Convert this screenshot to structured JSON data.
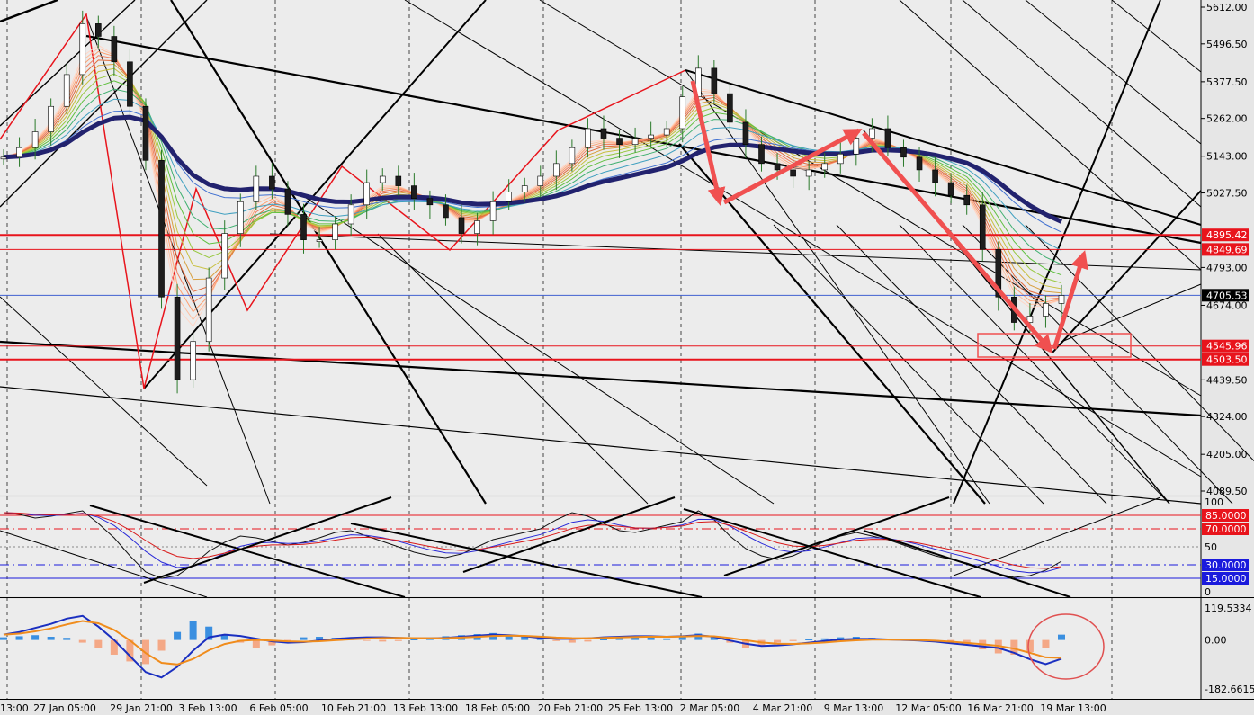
{
  "chart_data": {
    "type": "line",
    "instrument_panel": {
      "y_ticks": [
        "5612.00",
        "5496.50",
        "5377.50",
        "5262.00",
        "5143.00",
        "5027.50",
        "4793.00",
        "4674.00",
        "4439.50",
        "4324.00",
        "4205.00",
        "4089.50"
      ],
      "ylim": [
        4089.5,
        5612.0
      ],
      "price_labels": [
        {
          "value": 4895.42,
          "text": "4895.42",
          "color": "#e8141c"
        },
        {
          "value": 4849.69,
          "text": "4849.69",
          "color": "#e8141c"
        },
        {
          "value": 4705.53,
          "text": "4705.53",
          "color": "#000000"
        },
        {
          "value": 4545.96,
          "text": "4545.96",
          "color": "#e8141c"
        },
        {
          "value": 4503.5,
          "text": "4503.50",
          "color": "#e8141c"
        }
      ],
      "close_series": [
        5140,
        5170,
        5220,
        5300,
        5400,
        5560,
        5520,
        5440,
        5300,
        5130,
        4700,
        4440,
        4560,
        4760,
        4900,
        5000,
        5080,
        5040,
        4960,
        4880,
        4880,
        4930,
        4990,
        5060,
        5080,
        5050,
        5010,
        4990,
        4950,
        4900,
        4940,
        5000,
        5030,
        5050,
        5080,
        5120,
        5170,
        5230,
        5200,
        5180,
        5200,
        5210,
        5230,
        5330,
        5420,
        5340,
        5250,
        5180,
        5120,
        5100,
        5080,
        5100,
        5120,
        5150,
        5200,
        5230,
        5170,
        5140,
        5100,
        5060,
        5020,
        4990,
        4850,
        4700,
        4620,
        4640,
        4680,
        4705
      ]
    },
    "oscillator_panel": {
      "y_ticks": [
        "100",
        "50",
        "0"
      ],
      "levels": [
        {
          "value": 85,
          "text": "85.0000",
          "color": "#e8141c"
        },
        {
          "value": 70,
          "text": "70.0000",
          "color": "#e8141c"
        },
        {
          "value": 30,
          "text": "30.0000",
          "color": "#1a1adc"
        },
        {
          "value": 15,
          "text": "15.0000",
          "color": "#1a1adc"
        }
      ],
      "values": [
        88,
        86,
        82,
        84,
        87,
        90,
        76,
        60,
        40,
        22,
        15,
        18,
        30,
        45,
        55,
        62,
        60,
        56,
        52,
        55,
        60,
        66,
        68,
        62,
        56,
        50,
        44,
        40,
        38,
        42,
        50,
        58,
        62,
        66,
        70,
        80,
        88,
        84,
        76,
        68,
        66,
        70,
        74,
        78,
        90,
        80,
        62,
        48,
        40,
        36,
        40,
        48,
        56,
        62,
        66,
        62,
        58,
        52,
        46,
        40,
        36,
        32,
        26,
        20,
        16,
        18,
        24,
        34
      ]
    },
    "macd_panel": {
      "y_ticks": [
        "119.5334",
        "0.00",
        "-182.6615"
      ],
      "ylim": [
        -182.6615,
        119.5334
      ],
      "histogram": [
        10,
        14,
        18,
        12,
        8,
        -10,
        -30,
        -55,
        -80,
        -90,
        -40,
        30,
        70,
        50,
        20,
        -10,
        -30,
        -20,
        -5,
        10,
        12,
        8,
        4,
        -2,
        -6,
        -4,
        2,
        8,
        14,
        18,
        22,
        26,
        20,
        14,
        6,
        -4,
        -10,
        -6,
        2,
        8,
        12,
        10,
        6,
        14,
        24,
        12,
        -10,
        -30,
        -20,
        -10,
        -4,
        2,
        6,
        10,
        12,
        8,
        4,
        2,
        0,
        -6,
        -12,
        -20,
        -35,
        -50,
        -55,
        -45,
        -30,
        20
      ],
      "signal": [
        20,
        30,
        45,
        60,
        80,
        90,
        50,
        0,
        -60,
        -120,
        -140,
        -100,
        -40,
        10,
        20,
        15,
        5,
        -5,
        -10,
        -8,
        -2,
        4,
        8,
        10,
        10,
        8,
        6,
        6,
        8,
        12,
        16,
        20,
        18,
        14,
        8,
        4,
        4,
        6,
        10,
        12,
        14,
        14,
        12,
        14,
        18,
        12,
        -2,
        -14,
        -22,
        -20,
        -16,
        -10,
        -4,
        2,
        4,
        4,
        2,
        0,
        -2,
        -6,
        -12,
        -18,
        -24,
        -30,
        -48,
        -72,
        -90,
        -70
      ]
    },
    "x_ticks": [
      "13:00",
      "27 Jan 05:00",
      "29 Jan 21:00",
      "3 Feb 13:00",
      "6 Feb 05:00",
      "10 Feb 21:00",
      "13 Feb 13:00",
      "18 Feb 05:00",
      "20 Feb 21:00",
      "25 Feb 13:00",
      "2 Mar 05:00",
      "4 Mar 21:00",
      "9 Mar 13:00",
      "12 Mar 05:00",
      "16 Mar 21:00",
      "19 Mar 13:00"
    ]
  }
}
